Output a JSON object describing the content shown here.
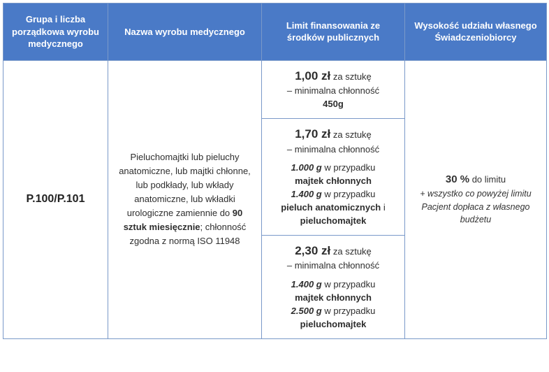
{
  "headers": {
    "group": "Grupa i liczba porządkowa wyrobu medycznego",
    "name": "Nazwa wyrobu medycznego",
    "limit": "Limit finansowania ze środków publicznych",
    "own": "Wysokość udziału własnego Świadczeniobiorcy"
  },
  "group_code": "P.100/P.101",
  "product_name": {
    "pre": "Pieluchomajtki lub pieluchy anatomiczne, lub majtki chłonne, lub podkłady, lub wkłady anatomiczne, lub wkładki urologiczne zamiennie do ",
    "qty": "90 sztuk miesięcznie",
    "post1": "; chłonność zgodna z normą ISO 11948"
  },
  "tiers": {
    "t1": {
      "price": "1,00 zł",
      "per": " za sztukę",
      "sub_pre": "– minimalna chłonność",
      "g": "450g"
    },
    "t2": {
      "price": "1,70 zł",
      "per": " za sztukę",
      "sub_pre": "– minimalna chłonność",
      "g1": "1.000 g",
      "txt1": " w przypadku ",
      "b1": "majtek chłonnych",
      "g2": "1.400 g",
      "txt2": " w przypadku ",
      "b2a": "pieluch anatomicznych",
      "and": " i ",
      "b2b": "pieluchomajtek"
    },
    "t3": {
      "price": "2,30 zł",
      "per": " za sztukę",
      "sub_pre": "– minimalna chłonność",
      "g1": "1.400 g",
      "txt1": " w przypadku ",
      "b1": "majtek chłonnych",
      "g2": "2.500 g",
      "txt2": " w przypadku ",
      "b2": "pieluchomajtek"
    }
  },
  "own_share": {
    "main": "30 %",
    "main_after": " do limitu",
    "note": "+ wszystko co powyżej limitu Pacjent dopłaca z własnego budżetu"
  },
  "style": {
    "header_bg": "#4a7ac7",
    "header_fg": "#ffffff",
    "border_color": "#7a99c9",
    "body_fg": "#2e2e2e",
    "price_font_size_pt": 17,
    "header_font_size_pt": 13,
    "body_font_size_pt": 13
  }
}
